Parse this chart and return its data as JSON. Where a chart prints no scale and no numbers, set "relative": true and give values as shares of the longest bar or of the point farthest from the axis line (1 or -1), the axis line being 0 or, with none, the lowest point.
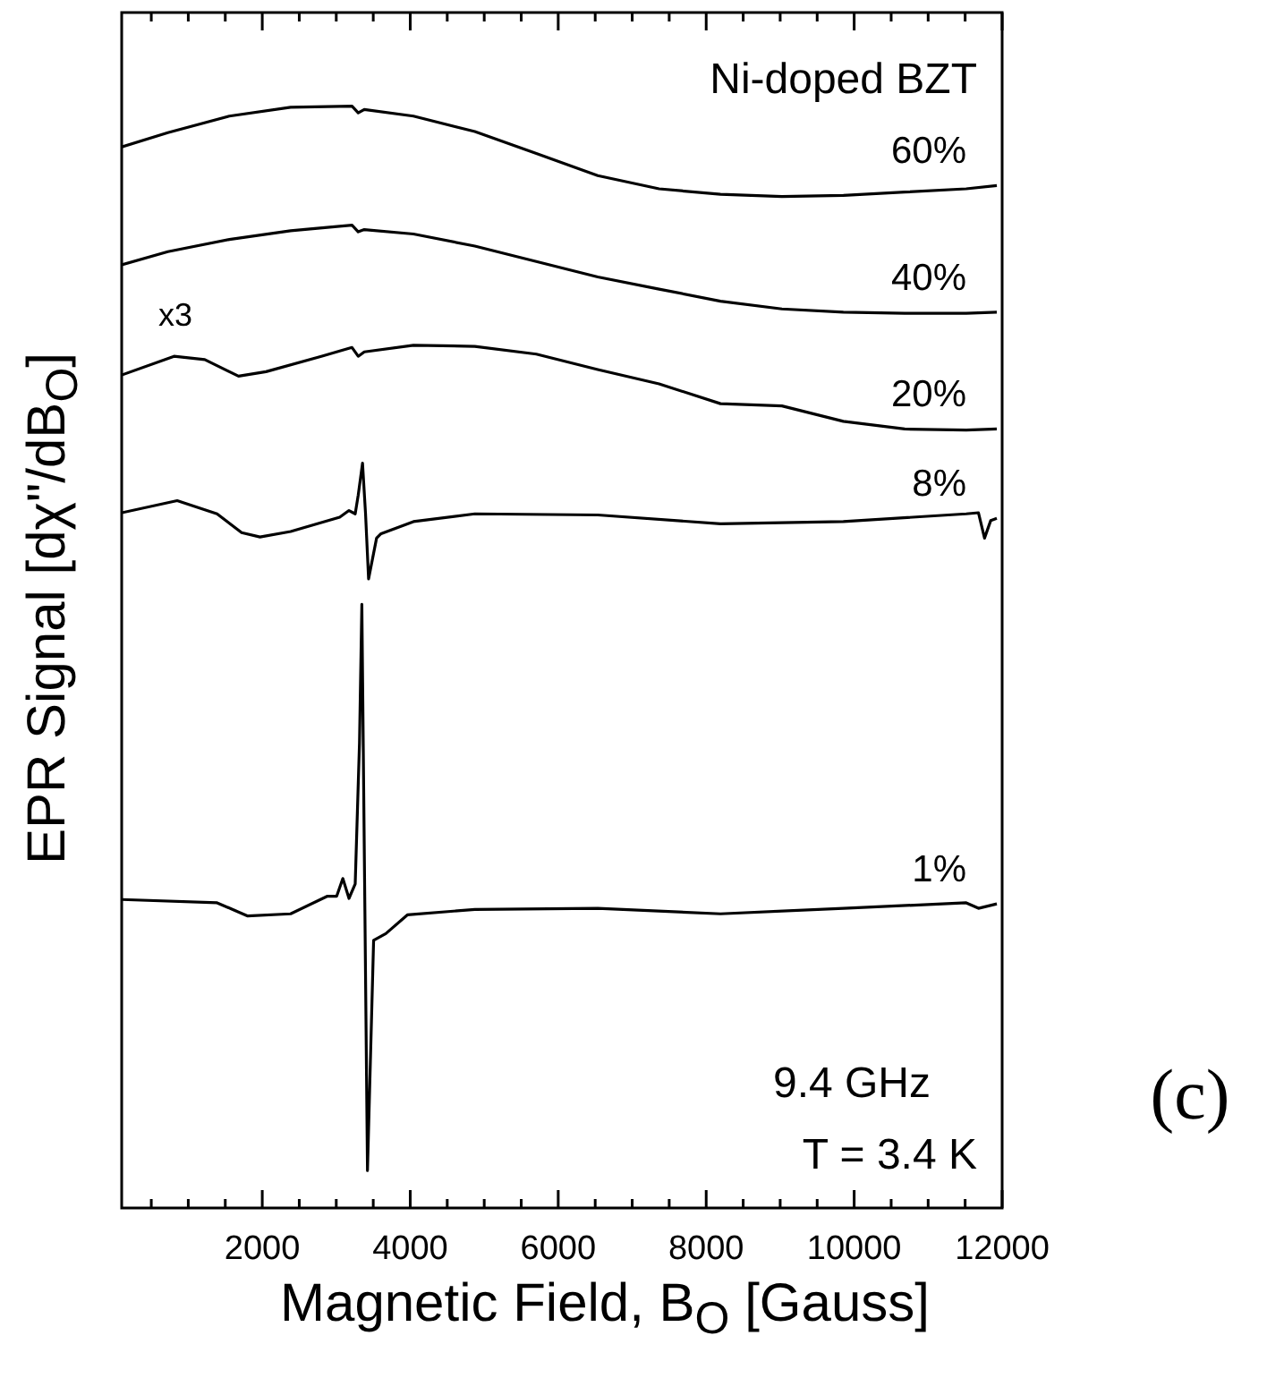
{
  "chart_data": {
    "type": "line",
    "relative": true,
    "xlabel": "Magnetic Field, B$_{O}$ [Gauss]",
    "ylabel": "EPR Signal [dχ\"/dB$_{O}$]",
    "xlim": [
      100,
      12000
    ],
    "xticks": [
      {
        "value": 500,
        "label": null
      },
      {
        "value": 1000,
        "label": null
      },
      {
        "value": 1500,
        "label": null
      },
      2000,
      {
        "value": 2500,
        "label": null
      },
      {
        "value": 3000,
        "label": null
      },
      {
        "value": 3500,
        "label": null
      },
      4000,
      {
        "value": 4500,
        "label": null
      },
      {
        "value": 5000,
        "label": null
      },
      {
        "value": 5500,
        "label": null
      },
      6000,
      {
        "value": 6500,
        "label": null
      },
      {
        "value": 7000,
        "label": null
      },
      {
        "value": 7500,
        "label": null
      },
      8000,
      {
        "value": 8500,
        "label": null
      },
      {
        "value": 9000,
        "label": null
      },
      {
        "value": 9500,
        "label": null
      },
      10000,
      {
        "value": 10500,
        "label": null
      },
      {
        "value": 11000,
        "label": null
      },
      {
        "value": 11500,
        "label": null
      },
      12000
    ],
    "grid": false,
    "legend": false,
    "marker": "none",
    "line_style": "solid",
    "annotations": [
      "Ni-doped BZT",
      "9.4 GHz",
      "T = 3.4 K",
      "(c)",
      "x3"
    ],
    "series": [
      {
        "name": "60%",
        "color": "#000000",
        "x": [
          101,
          724,
          1555,
          2383,
          3213,
          3297,
          3379,
          4043,
          4873,
          5704,
          6534,
          7363,
          8193,
          9023,
          9854,
          10683,
          11514,
          11928
        ],
        "values": [
          0.963,
          0.976,
          0.991,
          0.999,
          1.0,
          0.994,
          0.997,
          0.991,
          0.977,
          0.957,
          0.937,
          0.925,
          0.92,
          0.918,
          0.919,
          0.922,
          0.925,
          0.928
        ]
      },
      {
        "name": "40%",
        "color": "#000000",
        "x": [
          101,
          724,
          1555,
          2383,
          3213,
          3297,
          3379,
          4043,
          4873,
          5704,
          6534,
          7363,
          8193,
          9023,
          9854,
          10683,
          11514,
          11928
        ],
        "values": [
          0.856,
          0.868,
          0.879,
          0.887,
          0.892,
          0.886,
          0.888,
          0.884,
          0.873,
          0.859,
          0.845,
          0.834,
          0.823,
          0.816,
          0.813,
          0.812,
          0.812,
          0.813
        ]
      },
      {
        "name": "20%",
        "color": "#000000",
        "x": [
          101,
          807,
          1223,
          1679,
          2051,
          2798,
          3213,
          3297,
          3379,
          4043,
          4873,
          5704,
          6534,
          7363,
          8193,
          9023,
          9854,
          10683,
          11514,
          11928
        ],
        "values": [
          0.756,
          0.773,
          0.77,
          0.755,
          0.759,
          0.773,
          0.781,
          0.773,
          0.777,
          0.783,
          0.782,
          0.775,
          0.761,
          0.748,
          0.73,
          0.728,
          0.714,
          0.707,
          0.706,
          0.707
        ]
      },
      {
        "name": "8%",
        "color": "#000000",
        "x": [
          101,
          850,
          1389,
          1721,
          1969,
          2383,
          3047,
          3172,
          3256,
          3297,
          3355,
          3396,
          3437,
          3545,
          3605,
          4043,
          4873,
          6534,
          8193,
          9854,
          11514,
          11680,
          11762,
          11846,
          11928
        ],
        "values": [
          0.631,
          0.642,
          0.63,
          0.613,
          0.609,
          0.614,
          0.627,
          0.633,
          0.63,
          0.647,
          0.676,
          0.63,
          0.571,
          0.608,
          0.612,
          0.623,
          0.63,
          0.629,
          0.621,
          0.623,
          0.63,
          0.631,
          0.608,
          0.624,
          0.626
        ]
      },
      {
        "name": "1%",
        "color": "#000000",
        "x": [
          101,
          1389,
          1804,
          2383,
          2881,
          3006,
          3089,
          3172,
          3256,
          3314,
          3346,
          3422,
          3505,
          3670,
          3961,
          4873,
          6534,
          8193,
          9854,
          11514,
          11680,
          11928
        ],
        "values": [
          0.28,
          0.277,
          0.265,
          0.267,
          0.283,
          0.283,
          0.299,
          0.281,
          0.294,
          0.422,
          0.548,
          0.034,
          0.243,
          0.249,
          0.266,
          0.271,
          0.272,
          0.267,
          0.272,
          0.277,
          0.272,
          0.276
        ]
      }
    ]
  }
}
